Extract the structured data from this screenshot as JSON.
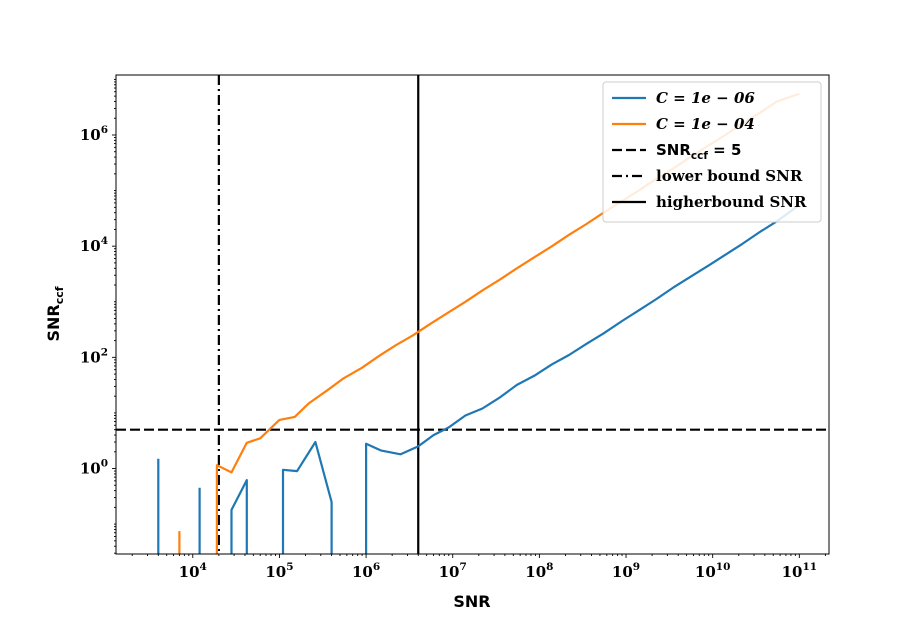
{
  "chart_data": {
    "type": "line",
    "x_scale": "log",
    "y_scale": "log",
    "xlabel": "SNR",
    "ylabel": "SNR",
    "ylabel_sub": "ccf",
    "xlim": [
      1300,
      220000000000
    ],
    "ylim": [
      0.029,
      12000000
    ],
    "x_ticks": [
      {
        "value": 10000,
        "base": "10",
        "exp": "4"
      },
      {
        "value": 100000,
        "base": "10",
        "exp": "5"
      },
      {
        "value": 1000000,
        "base": "10",
        "exp": "6"
      },
      {
        "value": 10000000,
        "base": "10",
        "exp": "7"
      },
      {
        "value": 100000000,
        "base": "10",
        "exp": "8"
      },
      {
        "value": 1000000000,
        "base": "10",
        "exp": "9"
      },
      {
        "value": 10000000000,
        "base": "10",
        "exp": "10"
      },
      {
        "value": 100000000000,
        "base": "10",
        "exp": "11"
      }
    ],
    "y_ticks": [
      {
        "value": 1,
        "base": "10",
        "exp": "0"
      },
      {
        "value": 100,
        "base": "10",
        "exp": "2"
      },
      {
        "value": 10000,
        "base": "10",
        "exp": "4"
      },
      {
        "value": 1000000,
        "base": "10",
        "exp": "6"
      }
    ],
    "series": [
      {
        "name": "C = 1e − 06",
        "color": "#1f77b4",
        "segments": [
          [
            [
              4000,
              0.029
            ],
            [
              4000,
              1.5
            ]
          ],
          [
            [
              12000,
              0.029
            ],
            [
              12000,
              0.45
            ]
          ],
          [
            [
              28000,
              0.029
            ],
            [
              28000,
              0.18
            ],
            [
              42000,
              0.62
            ],
            [
              42000,
              0.029
            ]
          ],
          [
            [
              110000,
              0.029
            ],
            [
              110000,
              0.95
            ],
            [
              160000,
              0.9
            ],
            [
              260000,
              3.0
            ],
            [
              400000,
              0.25
            ],
            [
              400000,
              0.029
            ]
          ],
          [
            [
              1000000,
              0.029
            ],
            [
              1000000,
              2.8
            ],
            [
              1500000,
              2.1
            ],
            [
              2500000,
              1.8
            ],
            [
              4000000,
              2.5
            ],
            [
              6000000,
              4.0
            ],
            [
              9000000,
              5.5
            ],
            [
              14000000,
              9
            ],
            [
              22000000,
              12
            ],
            [
              35000000,
              19
            ],
            [
              55000000,
              32
            ],
            [
              90000000,
              48
            ],
            [
              140000000,
              75
            ],
            [
              220000000,
              110
            ],
            [
              350000000,
              175
            ],
            [
              550000000,
              270
            ],
            [
              900000000,
              450
            ],
            [
              1400000000,
              700
            ],
            [
              2200000000,
              1100
            ],
            [
              3500000000,
              1800
            ],
            [
              5500000000,
              2800
            ],
            [
              9000000000,
              4500
            ],
            [
              14000000000,
              7000
            ],
            [
              22000000000,
              11000
            ],
            [
              35000000000,
              18000
            ],
            [
              55000000000,
              28000
            ],
            [
              100000000000,
              55000
            ]
          ]
        ]
      },
      {
        "name": "C = 1e − 04",
        "color": "#ff7f0e",
        "segments": [
          [
            [
              7000,
              0.029
            ],
            [
              7000,
              0.075
            ]
          ],
          [
            [
              19000,
              0.029
            ],
            [
              19000,
              1.15
            ],
            [
              28000,
              0.85
            ],
            [
              42000,
              2.9
            ],
            [
              60000,
              3.5
            ],
            [
              100000,
              7.5
            ],
            [
              150000,
              8.5
            ],
            [
              220000,
              15
            ],
            [
              350000,
              25
            ],
            [
              550000,
              42
            ],
            [
              900000,
              65
            ],
            [
              1400000,
              105
            ],
            [
              2200000,
              165
            ],
            [
              3500000,
              250
            ],
            [
              5500000,
              400
            ],
            [
              9000000,
              650
            ],
            [
              14000000,
              1000
            ],
            [
              22000000,
              1600
            ],
            [
              35000000,
              2500
            ],
            [
              55000000,
              4000
            ],
            [
              90000000,
              6500
            ],
            [
              140000000,
              10000
            ],
            [
              220000000,
              16000
            ],
            [
              350000000,
              25000
            ],
            [
              550000000,
              40000
            ],
            [
              900000000,
              65000
            ],
            [
              1400000000,
              100000
            ],
            [
              2200000000,
              160000
            ],
            [
              3500000000,
              250000
            ],
            [
              5500000000,
              400000
            ],
            [
              9000000000,
              650000
            ],
            [
              14000000000,
              1000000
            ],
            [
              22000000000,
              1600000
            ],
            [
              35000000000,
              2500000
            ],
            [
              55000000000,
              4000000
            ],
            [
              100000000000,
              5500000
            ]
          ]
        ]
      }
    ],
    "reference_lines": [
      {
        "orientation": "horizontal",
        "value": 5,
        "style": "dashed",
        "color": "#000000"
      },
      {
        "orientation": "vertical",
        "value": 20000,
        "style": "dashdot",
        "color": "#000000"
      },
      {
        "orientation": "vertical",
        "value": 4000000,
        "style": "solid",
        "color": "#000000"
      }
    ],
    "legend": {
      "position": "top-right",
      "entries": [
        {
          "style": "solid",
          "color": "#1f77b4",
          "math": true,
          "text": "C = 1e − 06",
          "sub": ""
        },
        {
          "style": "solid",
          "color": "#ff7f0e",
          "math": true,
          "text": "C = 1e − 04",
          "sub": ""
        },
        {
          "style": "dashed",
          "color": "#000000",
          "math": false,
          "text": "SNR",
          "sub": "ccf",
          "after": " = 5"
        },
        {
          "style": "dashdot",
          "color": "#000000",
          "math": false,
          "text": "lower bound SNR",
          "sub": ""
        },
        {
          "style": "solid",
          "color": "#000000",
          "math": false,
          "text": "higherbound SNR",
          "sub": ""
        }
      ]
    }
  }
}
